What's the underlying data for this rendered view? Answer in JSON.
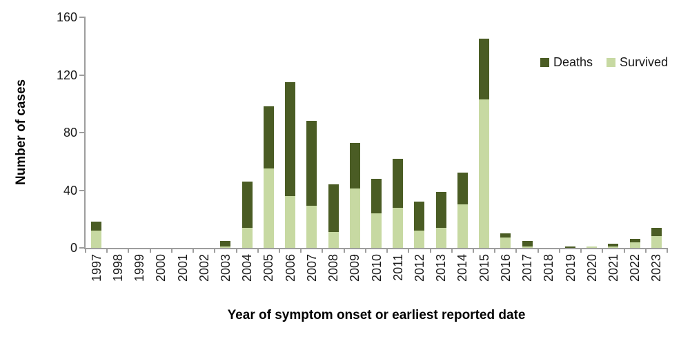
{
  "figure": {
    "background": "#ffffff",
    "axis_color": "#9d9d9d",
    "text_color": "#1a1a1a"
  },
  "chart_data": {
    "type": "bar",
    "stacked": true,
    "title": "",
    "xlabel": "Year of symptom onset or earliest reported date",
    "ylabel": "Number of cases",
    "categories": [
      "1997",
      "1998",
      "1999",
      "2000",
      "2001",
      "2002",
      "2003",
      "2004",
      "2005",
      "2006",
      "2007",
      "2008",
      "2009",
      "2010",
      "2011",
      "2012",
      "2013",
      "2014",
      "2015",
      "2016",
      "2017",
      "2018",
      "2019",
      "2020",
      "2021",
      "2022",
      "2023"
    ],
    "series": [
      {
        "name": "Deaths",
        "color": "#4a5c24",
        "values": [
          6,
          0,
          0,
          0,
          0,
          0,
          4,
          32,
          43,
          79,
          59,
          33,
          32,
          24,
          34,
          20,
          25,
          22,
          42,
          3,
          4,
          0,
          1,
          0,
          2,
          2,
          6
        ]
      },
      {
        "name": "Survived",
        "color": "#c7d9a2",
        "values": [
          12,
          0,
          0,
          0,
          0,
          0,
          1,
          14,
          55,
          36,
          29,
          11,
          41,
          24,
          28,
          12,
          14,
          30,
          103,
          7,
          1,
          0,
          0,
          1,
          1,
          4,
          8
        ]
      }
    ],
    "totals": [
      18,
      0,
      0,
      0,
      0,
      0,
      5,
      46,
      98,
      115,
      88,
      44,
      73,
      48,
      62,
      32,
      39,
      52,
      145,
      10,
      5,
      0,
      1,
      1,
      3,
      6,
      14
    ],
    "ylim": [
      0,
      160
    ],
    "yticks": [
      0,
      40,
      80,
      120,
      160
    ],
    "grid": false,
    "legend_position": "top-right",
    "legend": [
      "Deaths",
      "Survived"
    ]
  }
}
